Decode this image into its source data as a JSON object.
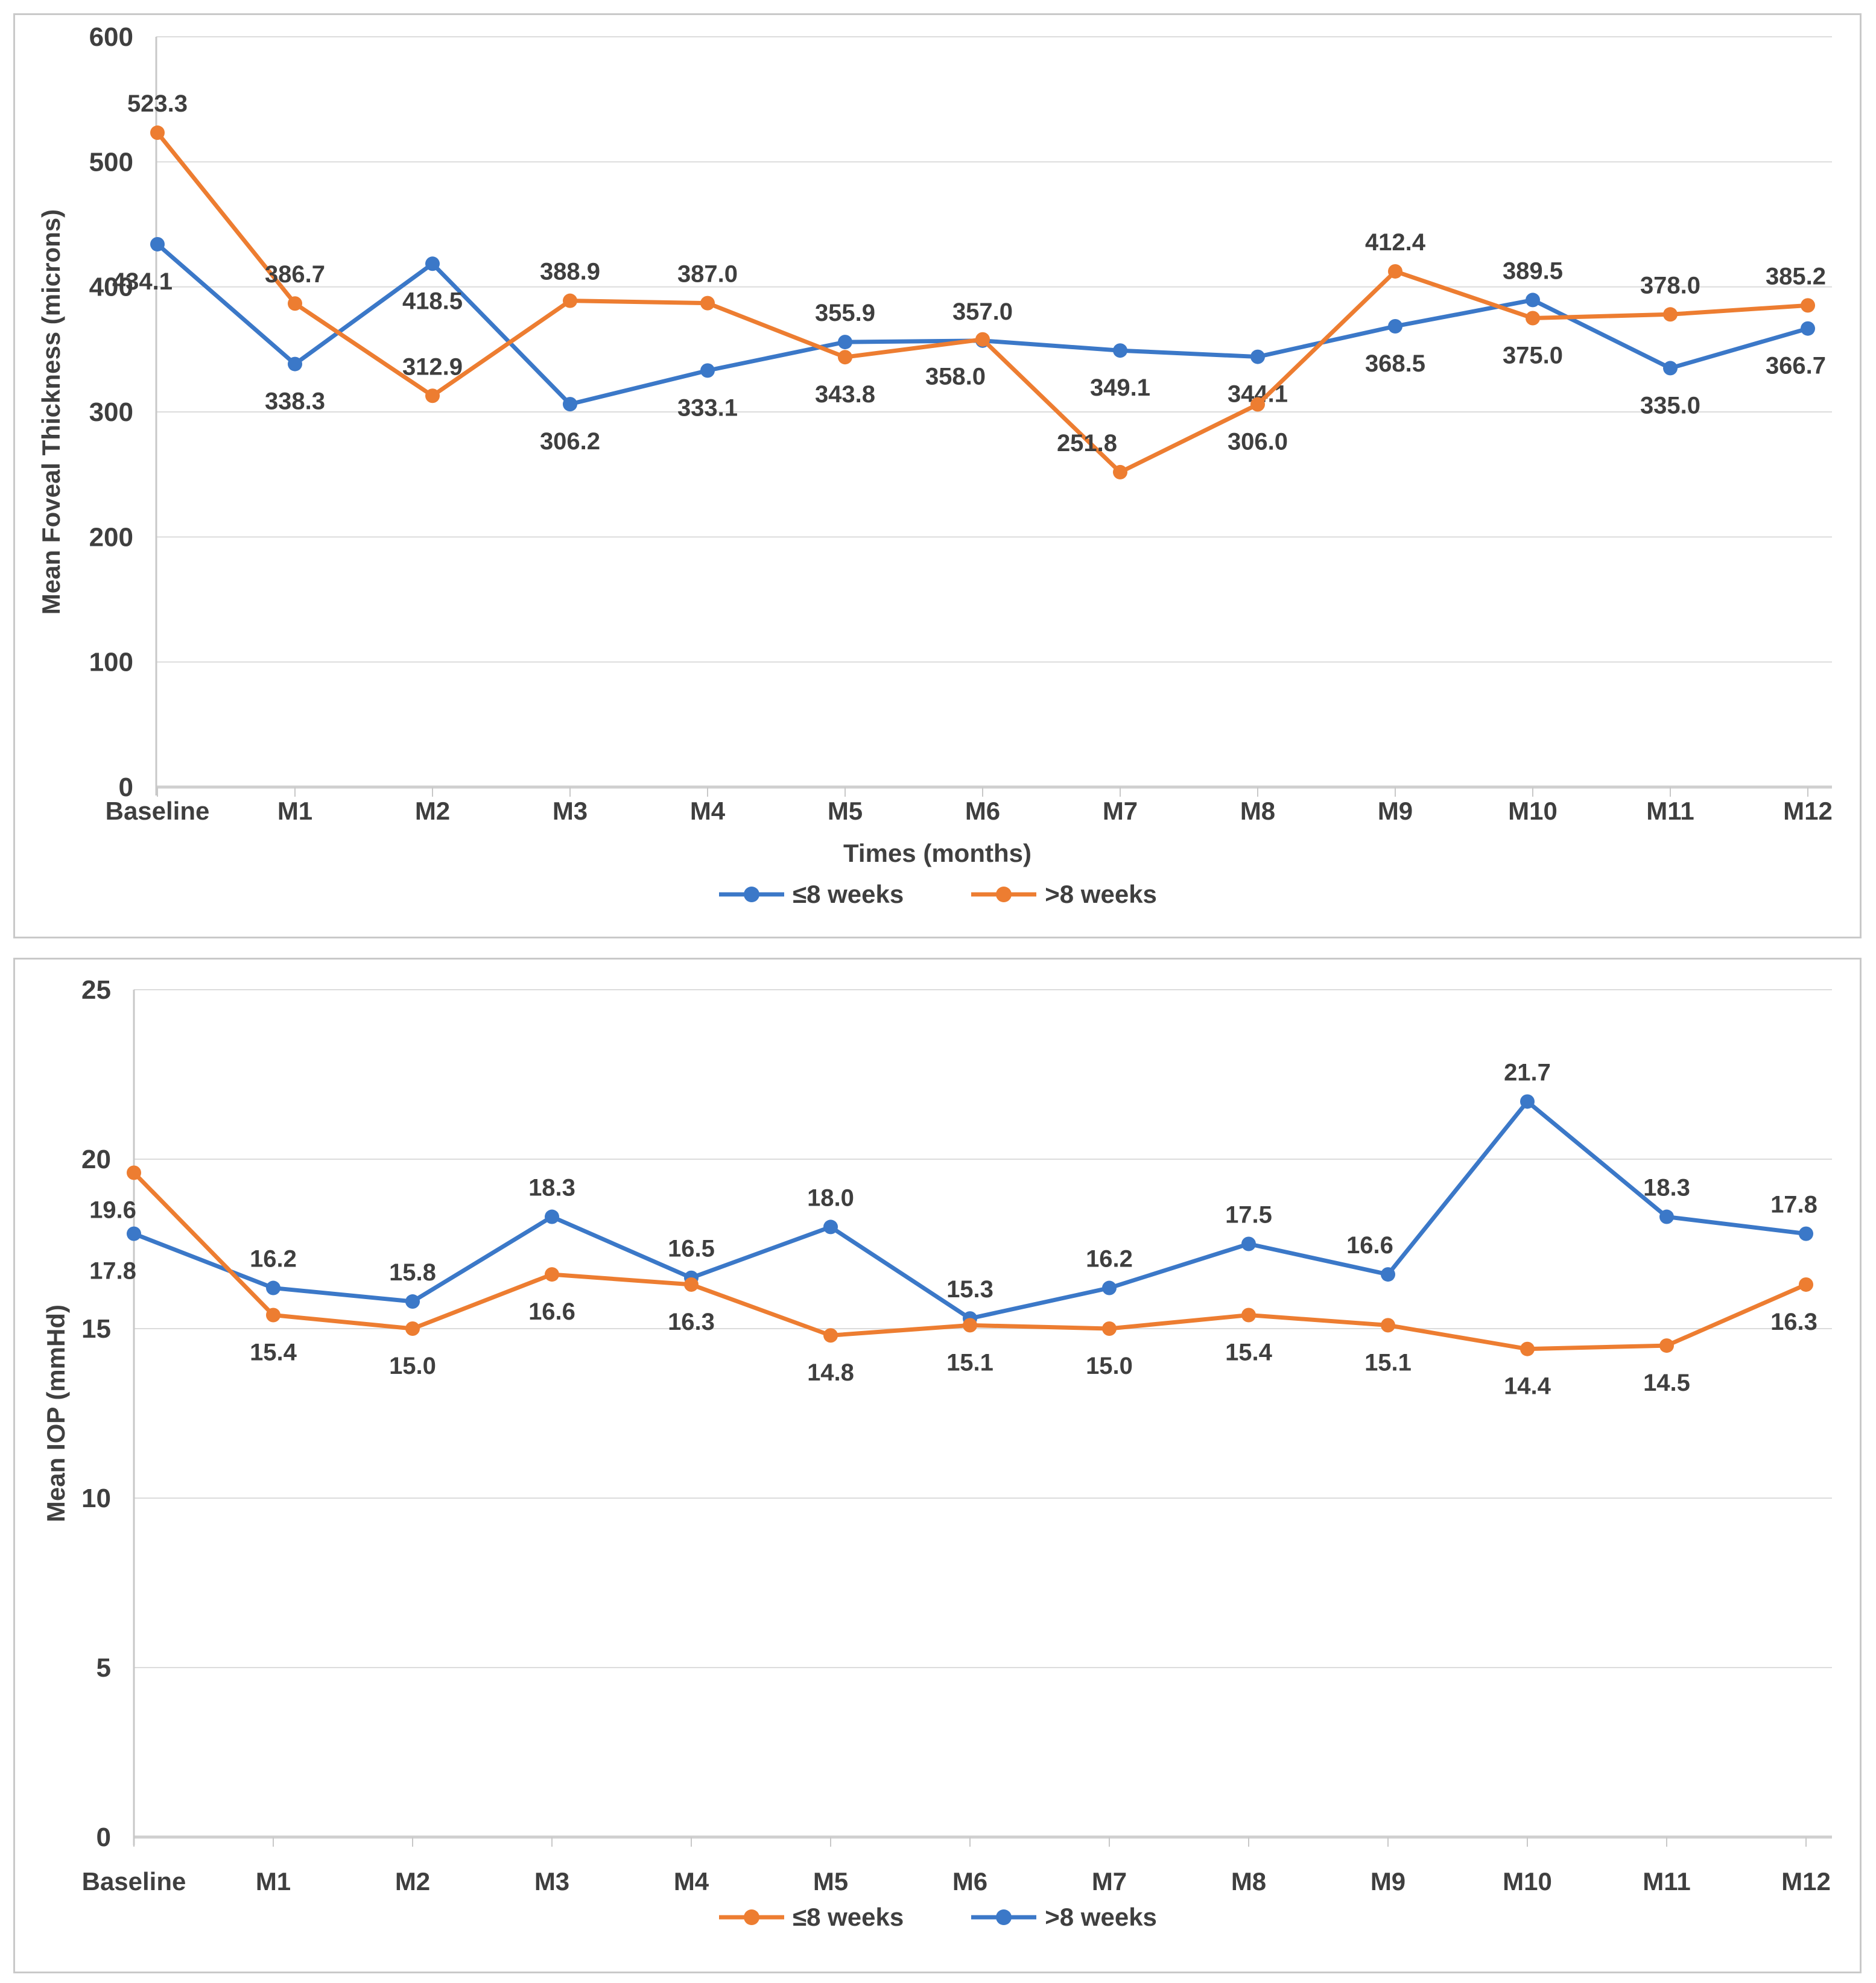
{
  "chart_data": [
    {
      "type": "line",
      "title": "",
      "ylabel": "Mean Foveal Thickness (microns)",
      "xlabel": "Times (months)",
      "ylim": [
        0,
        600
      ],
      "ytick_step": 100,
      "grid": true,
      "legend_position": "bottom",
      "categories": [
        "Baseline",
        "M1",
        "M2",
        "M3",
        "M4",
        "M5",
        "M6",
        "M7",
        "M8",
        "M9",
        "M10",
        "M11",
        "M12"
      ],
      "series": [
        {
          "name": "≤8 weeks",
          "color": "#3B78C8",
          "values": [
            434.1,
            338.3,
            418.5,
            306.2,
            333.1,
            355.9,
            357.0,
            349.1,
            344.1,
            368.5,
            389.5,
            335.0,
            366.7
          ],
          "label_side": [
            "below",
            "below",
            "below",
            "below",
            "below",
            "above",
            "above",
            "below",
            "below",
            "below",
            "above",
            "below",
            "below"
          ]
        },
        {
          "name": ">8 weeks",
          "color": "#ED7D31",
          "values": [
            523.3,
            386.7,
            312.9,
            388.9,
            387.0,
            343.8,
            358.0,
            251.8,
            306.0,
            412.4,
            375.0,
            378.0,
            385.2
          ],
          "label_side": [
            "above",
            "above",
            "above",
            "above",
            "above",
            "below",
            "below",
            "above",
            "below",
            "above",
            "below",
            "above",
            "above"
          ]
        }
      ]
    },
    {
      "type": "line",
      "title": "",
      "ylabel": "Mean IOP (mmHd)",
      "xlabel": "",
      "ylim": [
        0,
        25
      ],
      "ytick_step": 5,
      "grid": true,
      "legend_position": "bottom",
      "categories": [
        "Baseline",
        "M1",
        "M2",
        "M3",
        "M4",
        "M5",
        "M6",
        "M7",
        "M8",
        "M9",
        "M10",
        "M11",
        "M12"
      ],
      "series": [
        {
          "name": "≤8 weeks",
          "color": "#ED7D31",
          "values": [
            19.6,
            15.4,
            15.0,
            16.6,
            16.3,
            14.8,
            15.1,
            15.0,
            15.4,
            15.1,
            14.4,
            14.5,
            16.3
          ],
          "label_side": [
            "below",
            "below",
            "below",
            "below",
            "below",
            "below",
            "below",
            "below",
            "below",
            "below",
            "below",
            "below",
            "below"
          ]
        },
        {
          "name": ">8 weeks",
          "color": "#3B78C8",
          "values": [
            17.8,
            16.2,
            15.8,
            18.3,
            16.5,
            18.0,
            15.3,
            16.2,
            17.5,
            16.6,
            21.7,
            18.3,
            17.8
          ],
          "label_side": [
            "below",
            "above",
            "above",
            "above",
            "above",
            "above",
            "above",
            "above",
            "above",
            "above",
            "above",
            "above",
            "above"
          ]
        }
      ]
    }
  ]
}
